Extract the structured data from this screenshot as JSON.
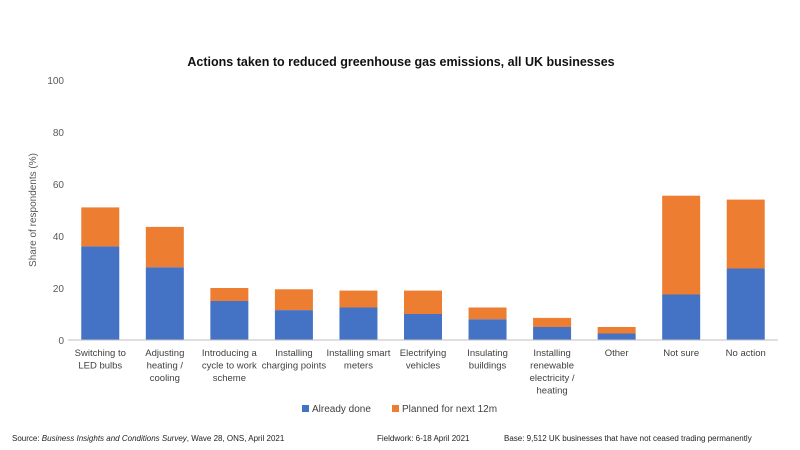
{
  "chart_data": {
    "type": "bar",
    "stacked": true,
    "title": "Actions taken to reduced greenhouse gas emissions, all UK businesses",
    "ylabel": "Share of respondents (%)",
    "ylim": [
      0,
      100
    ],
    "yticks": [
      "0",
      "20",
      "40",
      "60",
      "80",
      "100"
    ],
    "grid": false,
    "legend_position": "bottom",
    "categories": [
      [
        "Switching to",
        "LED bulbs"
      ],
      [
        "Adjusting",
        "heating /",
        "cooling"
      ],
      [
        "Introducing a",
        "cycle to work",
        "scheme"
      ],
      [
        "Installing",
        "charging points"
      ],
      [
        "Installing smart",
        "meters"
      ],
      [
        "Electrifying",
        "vehicles"
      ],
      [
        "Insulating",
        "buildings"
      ],
      [
        "Installing",
        "renewable",
        "electricity /",
        "heating"
      ],
      [
        "Other"
      ],
      [
        "Not sure"
      ],
      [
        "No action"
      ]
    ],
    "series": [
      {
        "name": "Already done",
        "color": "#4472C4",
        "values": [
          36,
          28,
          15,
          11.5,
          12.5,
          10,
          8,
          5,
          2.5,
          17.5,
          27.5
        ]
      },
      {
        "name": "Planned for next 12m",
        "color": "#ED7D31",
        "values": [
          15,
          15.5,
          5,
          8,
          6.5,
          9,
          4.5,
          3.5,
          2.5,
          38,
          26.5
        ]
      }
    ]
  },
  "footer": {
    "source_label": "Source: ",
    "source_italic": "Business Insights and Conditions Survey",
    "source_rest": ", Wave 28, ONS, April 2021",
    "fieldwork": "Fieldwork: 6-18 April 2021",
    "base": "Base: 9,512 UK businesses that have not ceased trading permanently"
  }
}
